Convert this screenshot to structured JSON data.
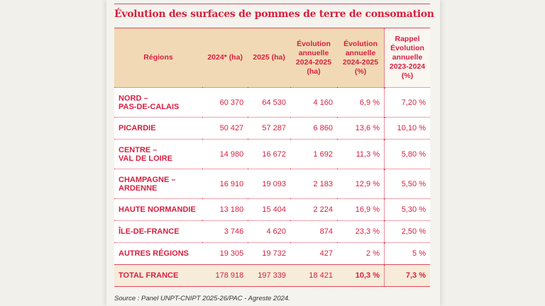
{
  "title": "Évolution des surfaces de pommes de terre de consomation",
  "headers": [
    "Régions",
    "2024* (ha)",
    "2025 (ha)",
    "Évolution annuelle 2024-2025 (ha)",
    "Évolution annuelle 2024-2025 (%)",
    "Rappel Évolution annuelle 2023-2024 (%)"
  ],
  "rows": [
    {
      "region": "NORD – PAS-DE-CALAIS",
      "v2024": "60 370",
      "v2025": "64 530",
      "evol_ha": "4 160",
      "evol_pct": "6,9 %",
      "rappel": "7,20 %"
    },
    {
      "region": "PICARDIE",
      "v2024": "50 427",
      "v2025": "57 287",
      "evol_ha": "6 860",
      "evol_pct": "13,6 %",
      "rappel": "10,10 %"
    },
    {
      "region": "CENTRE – VAL DE LOIRE",
      "v2024": "14 980",
      "v2025": "16 672",
      "evol_ha": "1 692",
      "evol_pct": "11,3 %",
      "rappel": "5,80 %"
    },
    {
      "region": "CHAMPAGNE – ARDENNE",
      "v2024": "16 910",
      "v2025": "19 093",
      "evol_ha": "2 183",
      "evol_pct": "12,9 %",
      "rappel": "5,50 %"
    },
    {
      "region": "HAUTE NORMANDIE",
      "v2024": "13 180",
      "v2025": "15 404",
      "evol_ha": "2 224",
      "evol_pct": "16,9 %",
      "rappel": "5,30 %"
    },
    {
      "region": "ÎLE-DE-FRANCE",
      "v2024": "3 746",
      "v2025": "4 620",
      "evol_ha": "874",
      "evol_pct": "23,3 %",
      "rappel": "2,50 %"
    },
    {
      "region": "AUTRES RÉGIONS",
      "v2024": "19 305",
      "v2025": "19 732",
      "evol_ha": "427",
      "evol_pct": "2 %",
      "rappel": "5 %"
    }
  ],
  "total": {
    "region": "TOTAL FRANCE",
    "v2024": "178 918",
    "v2025": "197 339",
    "evol_ha": "18 421",
    "evol_pct": "10,3 %",
    "rappel": "7,3 %"
  },
  "source": "Source : Panel UNPT-CNIPT 2025-26/PAC - Agreste 2024."
}
